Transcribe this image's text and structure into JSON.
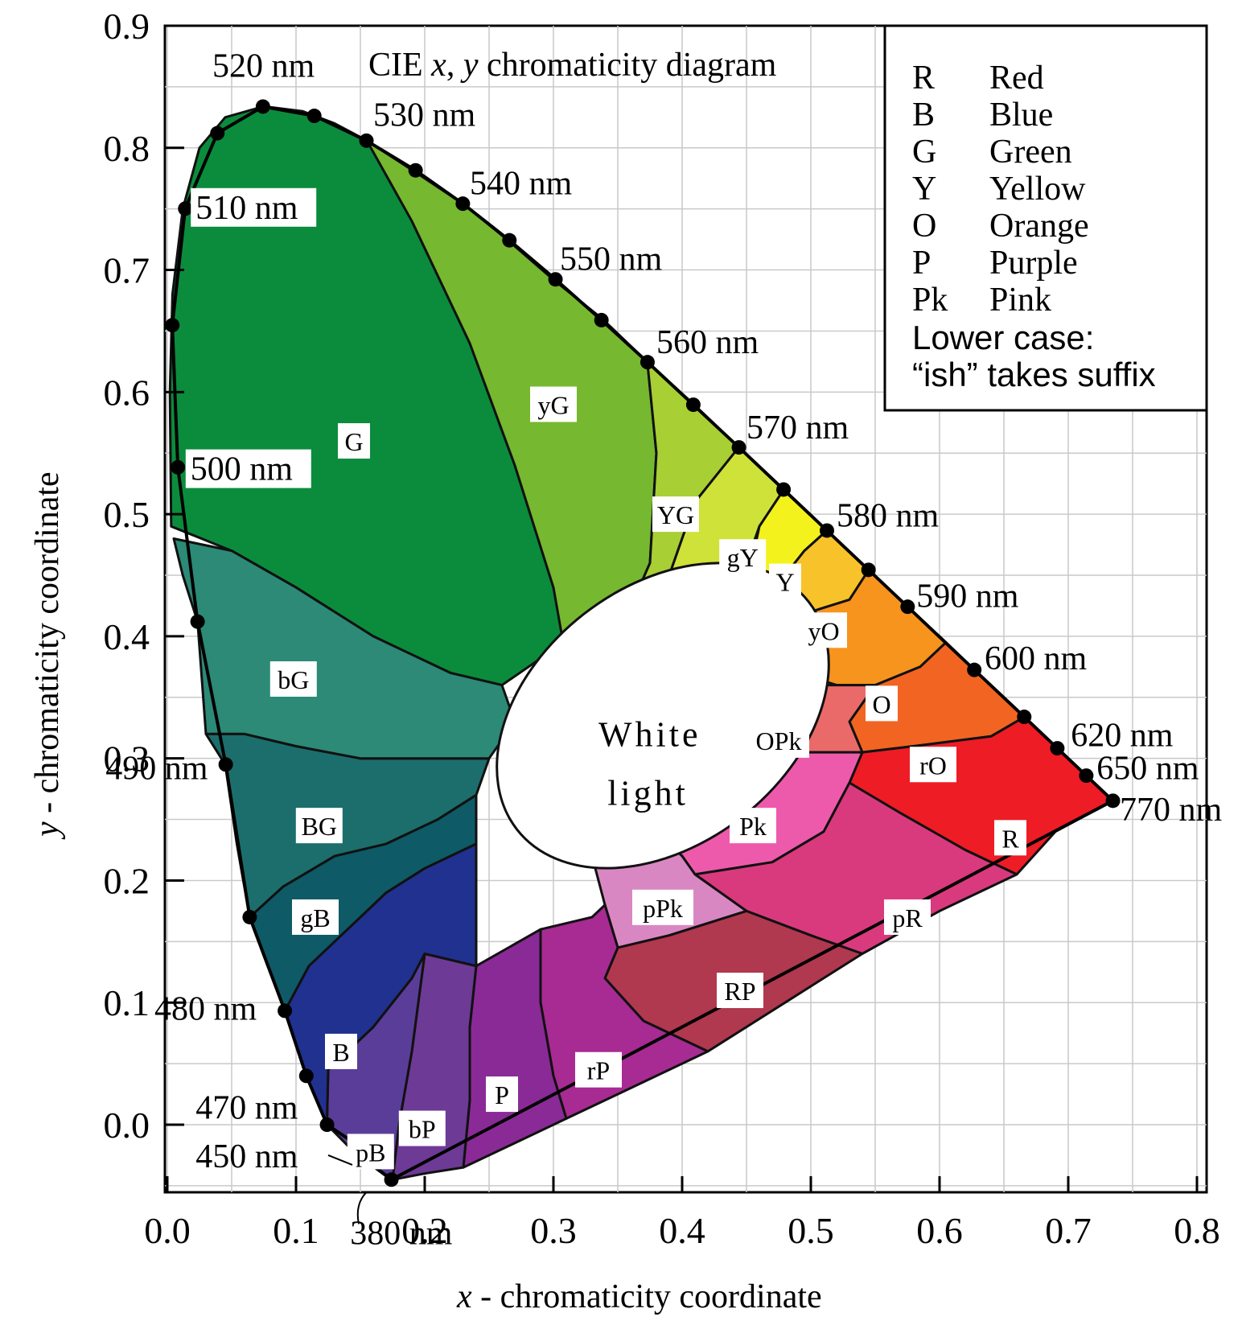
{
  "chart_data": {
    "type": "diagram",
    "title": "CIE x, y chromaticity diagram",
    "title_parts": {
      "prefix": "CIE ",
      "x": "x",
      "sep": ", ",
      "y": "y",
      "suffix": " chromaticity diagram"
    },
    "xlabel": {
      "var": "x",
      "text": " - chromaticity coordinate"
    },
    "ylabel": {
      "var": "y",
      "text": " - chromaticity coordinate"
    },
    "xlim": [
      0.0,
      0.8
    ],
    "ylim": [
      -0.05,
      0.9
    ],
    "x_ticks": [
      "0.0",
      "0.1",
      "0.2",
      "0.3",
      "0.4",
      "0.5",
      "0.6",
      "0.7",
      "0.8"
    ],
    "y_ticks": [
      "0.0",
      "0.1",
      "0.2",
      "0.3",
      "0.4",
      "0.5",
      "0.6",
      "0.7",
      "0.8",
      "0.9"
    ],
    "grid": true,
    "spectral_locus": [
      {
        "x": 0.1741,
        "y": -0.045,
        "nm": "380 nm"
      },
      {
        "x": 0.155,
        "y": -0.03,
        "nm": ""
      },
      {
        "x": 0.1566,
        "y": -0.023,
        "nm": "450 nm"
      },
      {
        "x": 0.1241,
        "y": 0.0,
        "nm": "470 nm"
      },
      {
        "x": 0.108,
        "y": 0.04,
        "nm": ""
      },
      {
        "x": 0.0913,
        "y": 0.0933,
        "nm": "480 nm"
      },
      {
        "x": 0.064,
        "y": 0.17,
        "nm": ""
      },
      {
        "x": 0.0454,
        "y": 0.295,
        "nm": "490 nm"
      },
      {
        "x": 0.0235,
        "y": 0.412,
        "nm": ""
      },
      {
        "x": 0.0082,
        "y": 0.5384,
        "nm": "500 nm"
      },
      {
        "x": 0.0039,
        "y": 0.6548,
        "nm": ""
      },
      {
        "x": 0.0139,
        "y": 0.7502,
        "nm": "510 nm"
      },
      {
        "x": 0.0389,
        "y": 0.812,
        "nm": ""
      },
      {
        "x": 0.0743,
        "y": 0.8338,
        "nm": "520 nm"
      },
      {
        "x": 0.1142,
        "y": 0.8262,
        "nm": ""
      },
      {
        "x": 0.1547,
        "y": 0.8059,
        "nm": "530 nm"
      },
      {
        "x": 0.1929,
        "y": 0.7816,
        "nm": ""
      },
      {
        "x": 0.2296,
        "y": 0.7543,
        "nm": "540 nm"
      },
      {
        "x": 0.2658,
        "y": 0.7243,
        "nm": ""
      },
      {
        "x": 0.3016,
        "y": 0.6923,
        "nm": "550 nm"
      },
      {
        "x": 0.3373,
        "y": 0.6589,
        "nm": ""
      },
      {
        "x": 0.3731,
        "y": 0.6245,
        "nm": "560 nm"
      },
      {
        "x": 0.4087,
        "y": 0.5896,
        "nm": ""
      },
      {
        "x": 0.4441,
        "y": 0.5547,
        "nm": "570 nm"
      },
      {
        "x": 0.4788,
        "y": 0.5202,
        "nm": ""
      },
      {
        "x": 0.5125,
        "y": 0.4866,
        "nm": "580 nm"
      },
      {
        "x": 0.5448,
        "y": 0.4544,
        "nm": ""
      },
      {
        "x": 0.5752,
        "y": 0.4242,
        "nm": "590 nm"
      },
      {
        "x": 0.627,
        "y": 0.3725,
        "nm": "600 nm"
      },
      {
        "x": 0.6658,
        "y": 0.334,
        "nm": ""
      },
      {
        "x": 0.6915,
        "y": 0.3083,
        "nm": "620 nm"
      },
      {
        "x": 0.714,
        "y": 0.2859,
        "nm": "650 nm"
      },
      {
        "x": 0.7347,
        "y": 0.2653,
        "nm": "770 nm"
      }
    ],
    "wavelength_labels": [
      "380 nm",
      "450 nm",
      "470 nm",
      "480 nm",
      "490 nm",
      "500 nm",
      "510 nm",
      "520 nm",
      "530 nm",
      "540 nm",
      "550 nm",
      "560 nm",
      "570 nm",
      "580 nm",
      "590 nm",
      "600 nm",
      "620 nm",
      "650 nm",
      "770 nm"
    ],
    "regions": [
      {
        "code": "G",
        "color": "#0b8c3c"
      },
      {
        "code": "yG",
        "color": "#76b82f"
      },
      {
        "code": "YG",
        "color": "#a8cf33"
      },
      {
        "code": "gY",
        "color": "#cfe23a"
      },
      {
        "code": "Y",
        "color": "#f3f21c"
      },
      {
        "code": "yO",
        "color": "#f8c22a"
      },
      {
        "code": "O",
        "color": "#f7941d"
      },
      {
        "code": "rO",
        "color": "#f26422"
      },
      {
        "code": "R",
        "color": "#ee1c25"
      },
      {
        "code": "OPk",
        "color": "#ea6a6a"
      },
      {
        "code": "Pk",
        "color": "#ee5aab"
      },
      {
        "code": "pR",
        "color": "#d93a7e"
      },
      {
        "code": "pPk",
        "color": "#d987c2"
      },
      {
        "code": "RP",
        "color": "#b0384f"
      },
      {
        "code": "rP",
        "color": "#a72b92"
      },
      {
        "code": "P",
        "color": "#8a2a97"
      },
      {
        "code": "bP",
        "color": "#6d3a96"
      },
      {
        "code": "pB",
        "color": "#5a3d98"
      },
      {
        "code": "B",
        "color": "#21318f"
      },
      {
        "code": "gB",
        "color": "#0e5a66"
      },
      {
        "code": "BG",
        "color": "#1c6e6c"
      },
      {
        "code": "bG",
        "color": "#2c8a77"
      }
    ],
    "white_region_label": [
      "White",
      "light"
    ],
    "legend": {
      "entries": [
        {
          "code": "R",
          "name": "Red"
        },
        {
          "code": "B",
          "name": "Blue"
        },
        {
          "code": "G",
          "name": "Green"
        },
        {
          "code": "Y",
          "name": "Yellow"
        },
        {
          "code": "O",
          "name": "Orange"
        },
        {
          "code": "P",
          "name": "Purple"
        },
        {
          "code": "Pk",
          "name": "Pink"
        }
      ],
      "note_line1": "Lower case:",
      "note_line2": "“ish” takes suffix",
      "placement": "top-right"
    }
  }
}
